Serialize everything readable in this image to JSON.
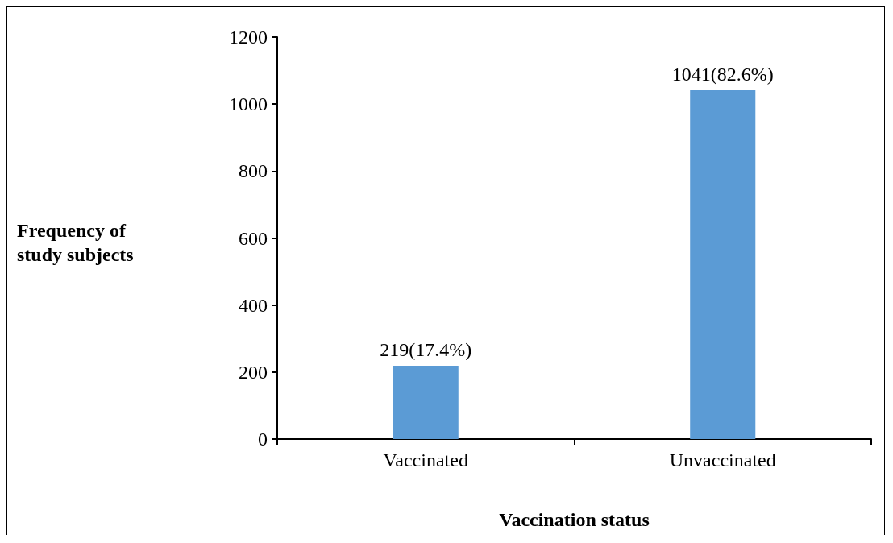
{
  "chart_data": {
    "type": "bar",
    "xlabel": "Vaccination status",
    "ylabel": "Frequency of study subjects",
    "categories": [
      "Vaccinated",
      "Unvaccinated"
    ],
    "values": [
      219,
      1041
    ],
    "value_labels": [
      "219(17.4%)",
      "1041(82.6%)"
    ],
    "color": "#5b9bd5",
    "ylim": [
      0,
      1200
    ],
    "yticks": [
      0,
      200,
      400,
      600,
      800,
      1000,
      1200
    ],
    "grid": false
  }
}
